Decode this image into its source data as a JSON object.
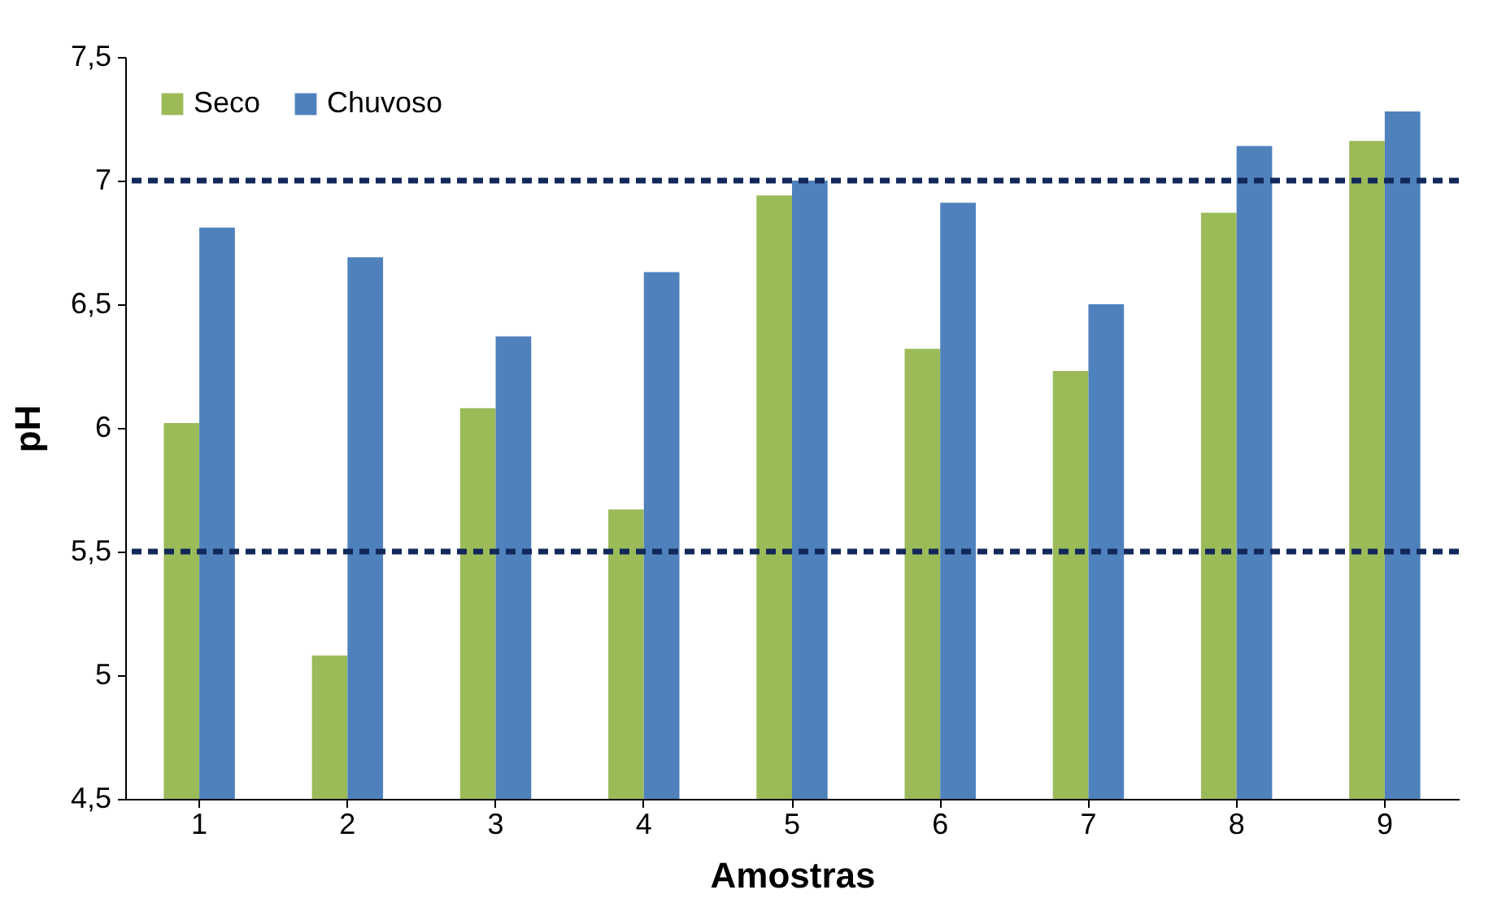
{
  "chart_data": {
    "type": "bar",
    "xlabel": "Amostras",
    "ylabel": "pH",
    "categories": [
      "1",
      "2",
      "3",
      "4",
      "5",
      "6",
      "7",
      "8",
      "9"
    ],
    "series": [
      {
        "name": "Seco",
        "color": "#9bbb59",
        "values": [
          6.02,
          5.08,
          6.08,
          5.67,
          6.94,
          6.32,
          6.23,
          6.87,
          7.16
        ]
      },
      {
        "name": "Chuvoso",
        "color": "#4f81bd",
        "values": [
          6.81,
          6.69,
          6.37,
          6.63,
          7.0,
          6.91,
          6.5,
          7.14,
          7.28
        ]
      }
    ],
    "ylim": [
      4.5,
      7.5
    ],
    "yticks": [
      {
        "value": 4.5,
        "label": "4,5"
      },
      5,
      {
        "value": 5.5,
        "label": "5,5"
      },
      6,
      {
        "value": 6.5,
        "label": "6,5"
      },
      7,
      {
        "value": 7.5,
        "label": "7,5"
      }
    ],
    "ref_lines": [
      {
        "axis": "y",
        "value": 7,
        "color": "#12285a",
        "line_style": "dashed"
      },
      {
        "axis": "y",
        "value": 5.5,
        "color": "#12285a",
        "line_style": "dashed"
      }
    ],
    "legend": "top left",
    "grid": false
  }
}
